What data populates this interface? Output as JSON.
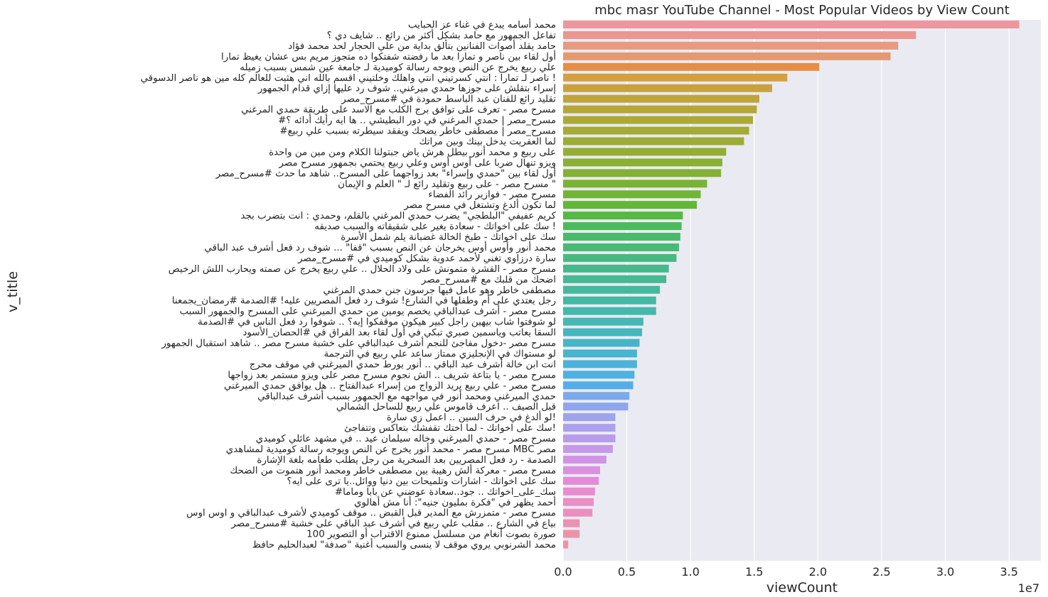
{
  "chart_data": {
    "type": "bar",
    "orientation": "horizontal",
    "title": "mbc masr YouTube Channel - Most Popular Videos by View Count",
    "xlabel": "viewCount",
    "ylabel": "v_title",
    "x_offset_label": "1e7",
    "x_scale": 10000000,
    "xlim": [
      0,
      3.75
    ],
    "x_ticks": [
      0.0,
      0.5,
      1.0,
      1.5,
      2.0,
      2.5,
      3.0,
      3.5
    ],
    "x_tick_labels": [
      "0.0",
      "0.5",
      "1.0",
      "1.5",
      "2.0",
      "2.5",
      "3.0",
      "3.5"
    ],
    "grid": true,
    "categories": [
      "محمد أسامه يبدع في غناء عز الحبايب",
      "تفاعل الجمهور مع حامد بشكل أكثر من رائع .. شايف دي ؟",
      "حامد يقلد أصوات الفنانين بتألق بداية من علي الحجار لحد محمد فؤاد",
      "أول لقاء بين ناصر و تمارا بعد ما رفضته شفتكوا ده متجوز مريم بس عشان يغيظ تمارا",
      "علي ربيع يخرج عن النص ويوجه رسالة كوميدية لـ جامعة عين شمس بسبب زميله",
      "ناصر لـ تمارا : انتي كسرتيني انتي واهلك وخلتيني اقسم بالله اني هثبت للعالم كله مين هو ناصر الدسوقي !",
      "إسراء بتقلش على جوزها حمدي ميرغني.. شوف رد عليها إزاي قدام الجمهور",
      "تقليد رائع للفنان عبد الباسط حمودة في #مسرح_مصر",
      "مسرح مصر - تعرف على توافق برج الكلب مع الاسد على طريقة حمدي المرغني",
      "#مسرح_مصر | حمدي المرغني في دور البطيشي .. ها ايه رأيك أدائه ؟",
      "#مسرح_مصر | مصطفى خاطر يضحك ويفقد سيطرته بسبب علي ربيع",
      "لما العفريت يدخل بينك وبين مراتك",
      "على ربيع و محمد أنور  بيطل هرش ياض جبتولنا الكلام ومن مين من واحدة",
      "ويزو تنهال ضربا على أوس أوس وعلي ربيع يحتمي بجمهور مسرح مصر",
      "أول لقاء بين \"حمدي وإسراء\" بعد زواجهما على المسرح.. شاهد ما حدث #مسرح_مصر",
      "مسرح مصر - على ربيع وتقليد رائع لـ \" العلم و الإيمان \"",
      "مسرح مصر - فوازير رائد الفضاء",
      "لما تكون ألدغ وتشتغل في مسرح مصر",
      "كريم عفيفي \"البلطجي\" يضرب حمدي المرغني بالقلم، وحمدي : انت بتضرب بجد",
      "سك على اخواتك - سعادة يغير على شقيقاته والسبب صديقه !",
      "سك على اخواتك - طبخ الخالة غضبانة يلم شمل الأسرة",
      "محمد أنور وأوس أوس يخرجان عن النص بسبب \"قفا\" ... شوف رد فعل أشرف عبد الباقي",
      "سارة درزاوي تغني لأحمد عدوية بشكل كوميدي في #مسرح_مصر",
      "مسرح مصر - القشرة متمونش على ولاد الحلال .. علي ربيع يخرج عن صمته ويحارب اللش الرخيص",
      "اضحك من قلبك مع #مسرح_مصر",
      "مصطفى خاطر وهو عامل فيها جرسون جنن حمدي المرغني",
      "رجل يعتدي على أم وطفلها في الشارع! شوف رد فعل المصريين عليه!  #الصدمة #رمضان_يجمعنا",
      "مسرح مصر - أشرف عبدالباقي يخصم يومين من حمدي الميرغني على المسرح والجمهور السبب",
      "لو شوفتوا شاب بيهين راجل كبير هيكون موقفكوا إيه؟ .. شوفوا رد فعل الناس في #الصدمة",
      "السقا يعاتب وياسمين صبري تبكي في أول لقاء بعد الفراق في #الحصان_الأسود",
      "مسرح مصر -دخول مفاجئ للنجم أشرف عبدالباقي على خشبة مسرح مصر .. شاهد استقبال الجمهور",
      "لو مستواك في الإنجليزي ممتاز ساعد علي ربيع في الترجمة",
      "انت ابن خالة أشرف عبد الباقي .. أنور يورط حمدي الميرغني في موقف محرج",
      "مسرح مصر - يا بتاعة شريف .. الش نجوم مسرح مصر على ويزو مستمر بعد زواجها",
      "مسرح مصر - علي ربيع يريد الزواج من إسراء عبدالفتاح .. هل يوافق حمدي الميرغني",
      "حمدي الميرغني ومحمد أنور في مواجهه مع الجمهور بسبب أشرف عبدالباقي",
      "قبل الصيف .. اعرف قاموس علي ربيع للساحل الشمالي",
      "لو ألدغ في حرف السين .. اعمل زي سارة!",
      "سك على اخواتك - لما اختك تقفشك بتعاكس وتتفاجئ!",
      "مسرح مصر - حمدي الميرغني وخاله سيلمان عيد .. في مشهد عائلي كوميدي",
      "مسرح مصر - محمد أنور يخرج عن النص ويوجه رسالة  كوميدية لمشاهدي MBC مصر",
      "الصدمة - رد فعل المصريين بعد السخرية من رجل يطلب طعامه بلغة الإشارة",
      "مسرح مصر - معركة ألش رهيبة بين مصطفى خاطر ومحمد أنور هتموت من الضحك",
      "سك على اخواتك - اشارات وتلميحات بين دنيا ووائل..يا ترى على ايه؟",
      "#سك_على_اخواتك .. جود..سعادة عوضني عن بابا وماما",
      "أحمد يظهر في \"فكرة بمليون جنيه\": أنا مش أهالوي",
      "مسرح مصر - متمزرش مع المدير قبل القبض .. موقف كوميدي لأشرف عبدالباقي و اوس اوس",
      "بياع في الشارع .. مقلب علي ربيع في أشرف عبد الباقي على خشبة #مسرح_مصر",
      "100 صورة بصوت أنغام من مسلسل ممنوع الاقتراب أو التصوير",
      "محمد الشرنوبي يروي موقف لا ينسى والسبب أغنية \"صدفة\" لعبدالحليم حافظ"
    ],
    "values": [
      3.58,
      2.77,
      2.63,
      2.57,
      2.01,
      1.76,
      1.64,
      1.54,
      1.52,
      1.49,
      1.46,
      1.42,
      1.28,
      1.25,
      1.24,
      1.13,
      1.08,
      1.05,
      0.94,
      0.93,
      0.92,
      0.91,
      0.89,
      0.83,
      0.81,
      0.76,
      0.73,
      0.73,
      0.63,
      0.62,
      0.6,
      0.58,
      0.58,
      0.56,
      0.55,
      0.52,
      0.51,
      0.41,
      0.41,
      0.41,
      0.39,
      0.34,
      0.29,
      0.28,
      0.25,
      0.24,
      0.23,
      0.13,
      0.13,
      0.04
    ],
    "colors": [
      "#ED969E",
      "#EB978F",
      "#E69A80",
      "#E49A70",
      "#E68E45",
      "#D4A03E",
      "#C9A13C",
      "#BFA43A",
      "#B5A638",
      "#ACA937",
      "#A4AB36",
      "#9BAD35",
      "#94AE35",
      "#8AB034",
      "#83B134",
      "#7AB334",
      "#70B534",
      "#63B735",
      "#55B943",
      "#4BBA5B",
      "#48BA69",
      "#47BA75",
      "#46BA80",
      "#46B98A",
      "#45B993",
      "#45B99C",
      "#44B9A4",
      "#45B8AD",
      "#45B7B5",
      "#46B6BD",
      "#47B5C6",
      "#48B4CE",
      "#4AB3D7",
      "#4DB1E1",
      "#53AEEA",
      "#7BA9EB",
      "#8EA6EC",
      "#9EA3EC",
      "#ABA0EC",
      "#B89CEB",
      "#C698EA",
      "#D194E5",
      "#DB90E0",
      "#E48BD8",
      "#E98CD0",
      "#EA8EC6",
      "#EB90BD",
      "#EB92B4",
      "#EC93AA",
      "#EC95A3"
    ]
  }
}
